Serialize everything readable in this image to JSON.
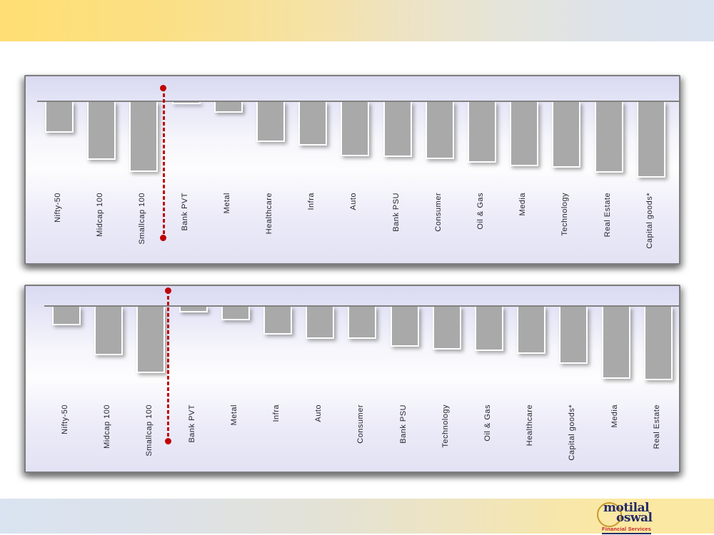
{
  "slide": {
    "background": "#ffffff",
    "top_band_gradient": [
      "#ffdf74",
      "#dae3f1"
    ],
    "bottom_band_gradient": [
      "#d9e3f1",
      "#fbe8a2"
    ],
    "bar_color": "#a9a9a9",
    "highlight_color": "#c00000"
  },
  "logo": {
    "word1": "motilal",
    "word2": "oswal",
    "tagline": "Financial Services",
    "navy": "#232a68",
    "red": "#c41e25",
    "gold": "#c79a2d"
  },
  "chart_data": [
    {
      "type": "bar",
      "title": "",
      "xlabel": "",
      "ylabel": "",
      "value_axis": "not labeled in image; values are relative bar lengths (negative = decline)",
      "categories": [
        "Nifty-50",
        "Midcap 100",
        "Smallcap 100",
        "Bank PVT",
        "Metal",
        "Healthcare",
        "Infra",
        "Auto",
        "Bank PSU",
        "Consumer",
        "Oil & Gas",
        "Media",
        "Technology",
        "Real Estate",
        "Capital goods*"
      ],
      "values": [
        -45,
        -83,
        -100,
        -5,
        -17,
        -58,
        -63,
        -78,
        -79,
        -82,
        -87,
        -92,
        -94,
        -101,
        -108
      ],
      "bar_color": "#a9a9a9",
      "grid": "off",
      "legend": "none",
      "highlighted_category": "Smallcap 100",
      "annotation": "red dashed vertical line with end dots through Smallcap 100"
    },
    {
      "type": "bar",
      "title": "",
      "xlabel": "",
      "ylabel": "",
      "value_axis": "not labeled in image; values are relative bar lengths (negative = decline)",
      "categories": [
        "Nifty-50",
        "Midcap 100",
        "Smallcap 100",
        "Bank PVT",
        "Metal",
        "Infra",
        "Auto",
        "Consumer",
        "Bank PSU",
        "Technology",
        "Oil & Gas",
        "Healthcare",
        "Capital goods*",
        "Media",
        "Real Estate"
      ],
      "values": [
        -28,
        -70,
        -95,
        -10,
        -21,
        -41,
        -47,
        -47,
        -58,
        -62,
        -64,
        -68,
        -82,
        -103,
        -105
      ],
      "bar_color": "#a9a9a9",
      "grid": "off",
      "legend": "none",
      "highlighted_category": "Smallcap 100",
      "annotation": "red dashed vertical line with end dots through Smallcap 100"
    }
  ]
}
